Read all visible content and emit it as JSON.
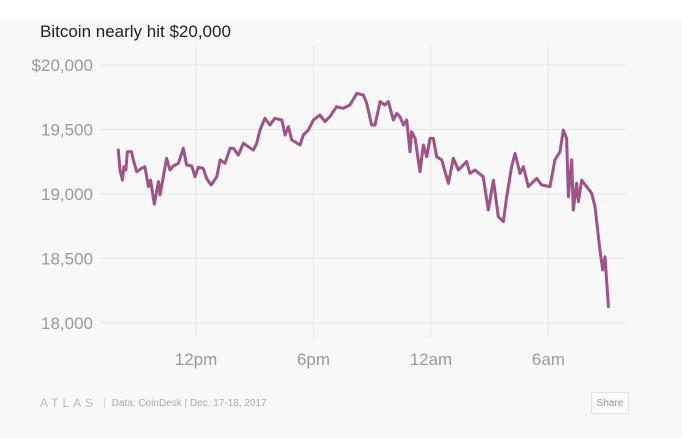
{
  "chart_data": {
    "type": "line",
    "title": "Bitcoin nearly hit $20,000",
    "xlabel": "",
    "ylabel": "",
    "x_units": "hours since midnight Dec. 17, 2017",
    "ylim": [
      18000,
      20000
    ],
    "xlim": [
      8,
      33.1
    ],
    "grid": true,
    "y_ticks": [
      {
        "value": 20000,
        "label": "$20,000"
      },
      {
        "value": 19500,
        "label": "19,500"
      },
      {
        "value": 19000,
        "label": "19,000"
      },
      {
        "value": 18500,
        "label": "18,500"
      },
      {
        "value": 18000,
        "label": "18,000"
      }
    ],
    "x_ticks": [
      {
        "value": 12,
        "label": "12pm"
      },
      {
        "value": 18,
        "label": "6pm"
      },
      {
        "value": 24,
        "label": "12am"
      },
      {
        "value": 30,
        "label": "6am"
      }
    ],
    "series": [
      {
        "name": "Bitcoin price",
        "color": "#a0528a",
        "points": [
          [
            8.03,
            19341
          ],
          [
            8.12,
            19186
          ],
          [
            8.24,
            19108
          ],
          [
            8.32,
            19212
          ],
          [
            8.42,
            19186
          ],
          [
            8.49,
            19328
          ],
          [
            8.71,
            19328
          ],
          [
            8.8,
            19264
          ],
          [
            8.97,
            19173
          ],
          [
            9.22,
            19199
          ],
          [
            9.39,
            19212
          ],
          [
            9.57,
            19057
          ],
          [
            9.68,
            19108
          ],
          [
            9.87,
            18922
          ],
          [
            10.08,
            19096
          ],
          [
            10.16,
            18992
          ],
          [
            10.5,
            19276
          ],
          [
            10.67,
            19186
          ],
          [
            10.84,
            19217
          ],
          [
            11.1,
            19238
          ],
          [
            11.35,
            19354
          ],
          [
            11.52,
            19225
          ],
          [
            11.78,
            19217
          ],
          [
            11.95,
            19134
          ],
          [
            12.12,
            19207
          ],
          [
            12.37,
            19199
          ],
          [
            12.54,
            19121
          ],
          [
            12.77,
            19070
          ],
          [
            13.06,
            19134
          ],
          [
            13.23,
            19264
          ],
          [
            13.48,
            19238
          ],
          [
            13.74,
            19354
          ],
          [
            13.91,
            19354
          ],
          [
            14.16,
            19302
          ],
          [
            14.42,
            19393
          ],
          [
            14.67,
            19367
          ],
          [
            14.93,
            19341
          ],
          [
            15.1,
            19393
          ],
          [
            15.27,
            19496
          ],
          [
            15.52,
            19587
          ],
          [
            15.78,
            19535
          ],
          [
            16.03,
            19587
          ],
          [
            16.38,
            19574
          ],
          [
            16.55,
            19457
          ],
          [
            16.72,
            19522
          ],
          [
            16.89,
            19419
          ],
          [
            17.31,
            19380
          ],
          [
            17.48,
            19457
          ],
          [
            17.74,
            19496
          ],
          [
            17.99,
            19574
          ],
          [
            18.33,
            19612
          ],
          [
            18.59,
            19561
          ],
          [
            18.84,
            19599
          ],
          [
            19.18,
            19677
          ],
          [
            19.52,
            19664
          ],
          [
            19.86,
            19690
          ],
          [
            20.21,
            19780
          ],
          [
            20.55,
            19767
          ],
          [
            20.72,
            19703
          ],
          [
            20.97,
            19535
          ],
          [
            21.14,
            19535
          ],
          [
            21.4,
            19716
          ],
          [
            21.65,
            19690
          ],
          [
            21.82,
            19716
          ],
          [
            22.08,
            19574
          ],
          [
            22.25,
            19625
          ],
          [
            22.42,
            19599
          ],
          [
            22.59,
            19535
          ],
          [
            22.76,
            19574
          ],
          [
            22.93,
            19328
          ],
          [
            23.01,
            19483
          ],
          [
            23.19,
            19431
          ],
          [
            23.44,
            19173
          ],
          [
            23.61,
            19380
          ],
          [
            23.78,
            19289
          ],
          [
            23.95,
            19431
          ],
          [
            24.12,
            19431
          ],
          [
            24.29,
            19289
          ],
          [
            24.55,
            19264
          ],
          [
            24.89,
            19083
          ],
          [
            25.14,
            19276
          ],
          [
            25.4,
            19186
          ],
          [
            25.82,
            19251
          ],
          [
            25.99,
            19160
          ],
          [
            26.25,
            19186
          ],
          [
            26.67,
            19134
          ],
          [
            26.93,
            18876
          ],
          [
            27.19,
            19108
          ],
          [
            27.44,
            18824
          ],
          [
            27.7,
            18786
          ],
          [
            27.87,
            18979
          ],
          [
            28.12,
            19212
          ],
          [
            28.29,
            19315
          ],
          [
            28.55,
            19160
          ],
          [
            28.72,
            19212
          ],
          [
            28.97,
            19057
          ],
          [
            29.4,
            19121
          ],
          [
            29.65,
            19070
          ],
          [
            30.08,
            19057
          ],
          [
            30.33,
            19264
          ],
          [
            30.59,
            19328
          ],
          [
            30.76,
            19496
          ],
          [
            30.93,
            19431
          ],
          [
            31.02,
            18979
          ],
          [
            31.19,
            19264
          ],
          [
            31.27,
            18876
          ],
          [
            31.44,
            19083
          ],
          [
            31.53,
            18940
          ],
          [
            31.7,
            19108
          ],
          [
            31.95,
            19057
          ],
          [
            32.21,
            19005
          ],
          [
            32.38,
            18902
          ],
          [
            32.63,
            18566
          ],
          [
            32.77,
            18411
          ],
          [
            32.89,
            18514
          ],
          [
            33.06,
            18127
          ]
        ]
      }
    ]
  },
  "footer": {
    "logo": "ATLAS",
    "source": "Data:  CoinDesk | Dec. 17-18, 2017",
    "share_label": "Share"
  }
}
